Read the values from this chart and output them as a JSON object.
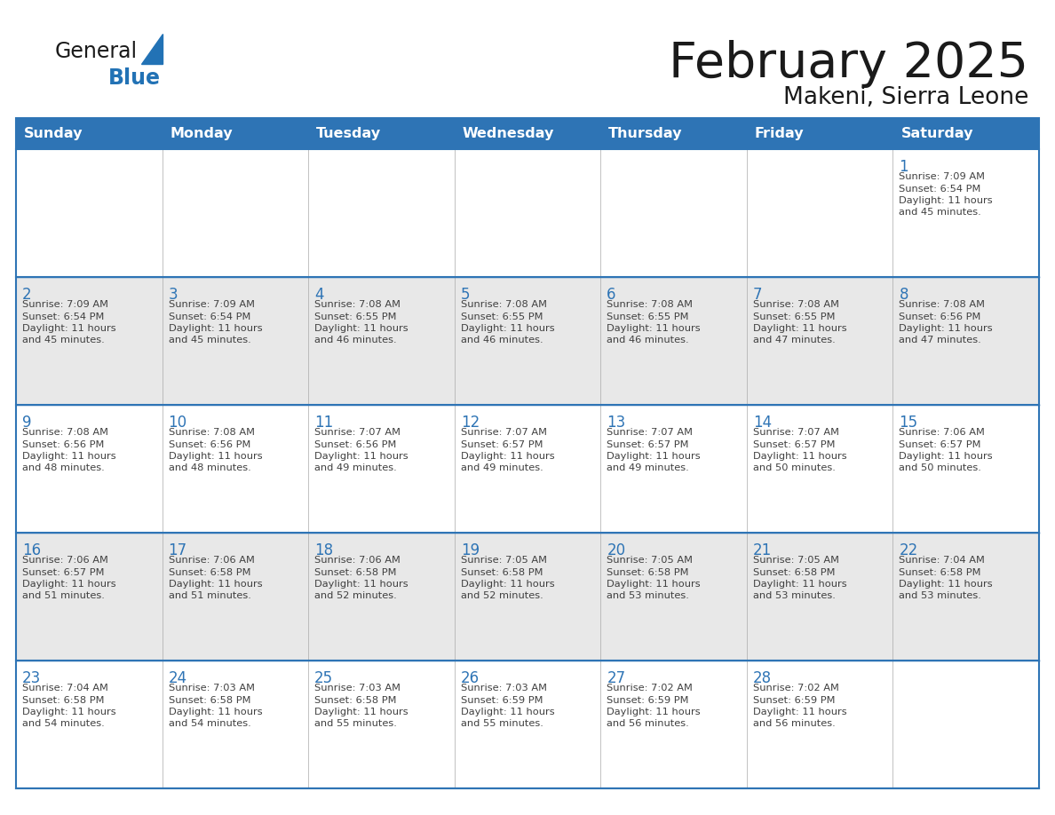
{
  "title": "February 2025",
  "subtitle": "Makeni, Sierra Leone",
  "days_of_week": [
    "Sunday",
    "Monday",
    "Tuesday",
    "Wednesday",
    "Thursday",
    "Friday",
    "Saturday"
  ],
  "header_bg": "#2E74B5",
  "header_text": "#FFFFFF",
  "cell_bg_even": "#FFFFFF",
  "cell_bg_odd": "#E8E8E8",
  "border_color": "#2E74B5",
  "day_number_color": "#2E74B5",
  "cell_text_color": "#404040",
  "title_color": "#1A1A1A",
  "subtitle_color": "#1A1A1A",
  "logo_general_color": "#1A1A1A",
  "logo_blue_color": "#2272B5",
  "calendar_data": [
    [
      null,
      null,
      null,
      null,
      null,
      null,
      {
        "day": "1",
        "sunrise": "7:09 AM",
        "sunset": "6:54 PM",
        "daylight_line1": "Daylight: 11 hours",
        "daylight_line2": "and 45 minutes."
      }
    ],
    [
      {
        "day": "2",
        "sunrise": "7:09 AM",
        "sunset": "6:54 PM",
        "daylight_line1": "Daylight: 11 hours",
        "daylight_line2": "and 45 minutes."
      },
      {
        "day": "3",
        "sunrise": "7:09 AM",
        "sunset": "6:54 PM",
        "daylight_line1": "Daylight: 11 hours",
        "daylight_line2": "and 45 minutes."
      },
      {
        "day": "4",
        "sunrise": "7:08 AM",
        "sunset": "6:55 PM",
        "daylight_line1": "Daylight: 11 hours",
        "daylight_line2": "and 46 minutes."
      },
      {
        "day": "5",
        "sunrise": "7:08 AM",
        "sunset": "6:55 PM",
        "daylight_line1": "Daylight: 11 hours",
        "daylight_line2": "and 46 minutes."
      },
      {
        "day": "6",
        "sunrise": "7:08 AM",
        "sunset": "6:55 PM",
        "daylight_line1": "Daylight: 11 hours",
        "daylight_line2": "and 46 minutes."
      },
      {
        "day": "7",
        "sunrise": "7:08 AM",
        "sunset": "6:55 PM",
        "daylight_line1": "Daylight: 11 hours",
        "daylight_line2": "and 47 minutes."
      },
      {
        "day": "8",
        "sunrise": "7:08 AM",
        "sunset": "6:56 PM",
        "daylight_line1": "Daylight: 11 hours",
        "daylight_line2": "and 47 minutes."
      }
    ],
    [
      {
        "day": "9",
        "sunrise": "7:08 AM",
        "sunset": "6:56 PM",
        "daylight_line1": "Daylight: 11 hours",
        "daylight_line2": "and 48 minutes."
      },
      {
        "day": "10",
        "sunrise": "7:08 AM",
        "sunset": "6:56 PM",
        "daylight_line1": "Daylight: 11 hours",
        "daylight_line2": "and 48 minutes."
      },
      {
        "day": "11",
        "sunrise": "7:07 AM",
        "sunset": "6:56 PM",
        "daylight_line1": "Daylight: 11 hours",
        "daylight_line2": "and 49 minutes."
      },
      {
        "day": "12",
        "sunrise": "7:07 AM",
        "sunset": "6:57 PM",
        "daylight_line1": "Daylight: 11 hours",
        "daylight_line2": "and 49 minutes."
      },
      {
        "day": "13",
        "sunrise": "7:07 AM",
        "sunset": "6:57 PM",
        "daylight_line1": "Daylight: 11 hours",
        "daylight_line2": "and 49 minutes."
      },
      {
        "day": "14",
        "sunrise": "7:07 AM",
        "sunset": "6:57 PM",
        "daylight_line1": "Daylight: 11 hours",
        "daylight_line2": "and 50 minutes."
      },
      {
        "day": "15",
        "sunrise": "7:06 AM",
        "sunset": "6:57 PM",
        "daylight_line1": "Daylight: 11 hours",
        "daylight_line2": "and 50 minutes."
      }
    ],
    [
      {
        "day": "16",
        "sunrise": "7:06 AM",
        "sunset": "6:57 PM",
        "daylight_line1": "Daylight: 11 hours",
        "daylight_line2": "and 51 minutes."
      },
      {
        "day": "17",
        "sunrise": "7:06 AM",
        "sunset": "6:58 PM",
        "daylight_line1": "Daylight: 11 hours",
        "daylight_line2": "and 51 minutes."
      },
      {
        "day": "18",
        "sunrise": "7:06 AM",
        "sunset": "6:58 PM",
        "daylight_line1": "Daylight: 11 hours",
        "daylight_line2": "and 52 minutes."
      },
      {
        "day": "19",
        "sunrise": "7:05 AM",
        "sunset": "6:58 PM",
        "daylight_line1": "Daylight: 11 hours",
        "daylight_line2": "and 52 minutes."
      },
      {
        "day": "20",
        "sunrise": "7:05 AM",
        "sunset": "6:58 PM",
        "daylight_line1": "Daylight: 11 hours",
        "daylight_line2": "and 53 minutes."
      },
      {
        "day": "21",
        "sunrise": "7:05 AM",
        "sunset": "6:58 PM",
        "daylight_line1": "Daylight: 11 hours",
        "daylight_line2": "and 53 minutes."
      },
      {
        "day": "22",
        "sunrise": "7:04 AM",
        "sunset": "6:58 PM",
        "daylight_line1": "Daylight: 11 hours",
        "daylight_line2": "and 53 minutes."
      }
    ],
    [
      {
        "day": "23",
        "sunrise": "7:04 AM",
        "sunset": "6:58 PM",
        "daylight_line1": "Daylight: 11 hours",
        "daylight_line2": "and 54 minutes."
      },
      {
        "day": "24",
        "sunrise": "7:03 AM",
        "sunset": "6:58 PM",
        "daylight_line1": "Daylight: 11 hours",
        "daylight_line2": "and 54 minutes."
      },
      {
        "day": "25",
        "sunrise": "7:03 AM",
        "sunset": "6:58 PM",
        "daylight_line1": "Daylight: 11 hours",
        "daylight_line2": "and 55 minutes."
      },
      {
        "day": "26",
        "sunrise": "7:03 AM",
        "sunset": "6:59 PM",
        "daylight_line1": "Daylight: 11 hours",
        "daylight_line2": "and 55 minutes."
      },
      {
        "day": "27",
        "sunrise": "7:02 AM",
        "sunset": "6:59 PM",
        "daylight_line1": "Daylight: 11 hours",
        "daylight_line2": "and 56 minutes."
      },
      {
        "day": "28",
        "sunrise": "7:02 AM",
        "sunset": "6:59 PM",
        "daylight_line1": "Daylight: 11 hours",
        "daylight_line2": "and 56 minutes."
      },
      null
    ]
  ]
}
